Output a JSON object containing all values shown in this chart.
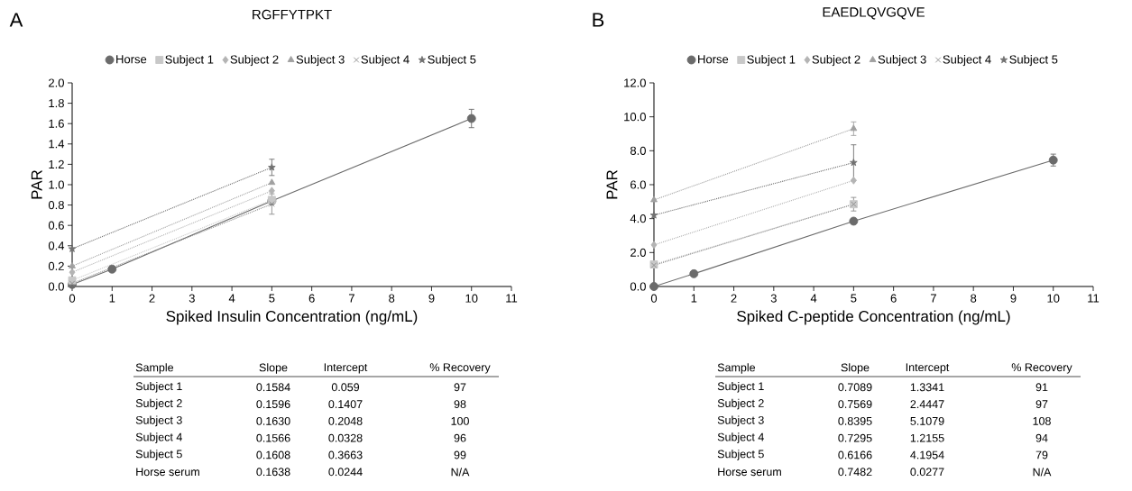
{
  "chart_data": [
    {
      "type": "line",
      "title": "RGFFYTPKT",
      "xlabel": "Spiked Insulin Concentration (ng/mL)",
      "ylabel": "PAR",
      "legend": "top",
      "xlim": [
        0,
        11
      ],
      "xticks": [
        0,
        1,
        2,
        3,
        4,
        5,
        6,
        7,
        8,
        9,
        10,
        11
      ],
      "ylim": [
        0,
        2
      ],
      "yticks": [
        {
          "value": 0,
          "label": "0.0"
        },
        {
          "value": 0.2,
          "label": "0.2"
        },
        {
          "value": 0.4,
          "label": "0.4"
        },
        {
          "value": 0.6,
          "label": "0.6"
        },
        {
          "value": 0.8,
          "label": "0.8"
        },
        {
          "value": 1,
          "label": "1.0"
        },
        {
          "value": 1.2,
          "label": "1.2"
        },
        {
          "value": 1.4,
          "label": "1.4"
        },
        {
          "value": 1.6,
          "label": "1.6"
        },
        {
          "value": 1.8,
          "label": "1.8"
        },
        {
          "value": 2,
          "label": "2.0"
        }
      ],
      "series": [
        {
          "name": "Horse",
          "color": "#6b6b6b",
          "marker": "circle",
          "line_style": "solid",
          "x": [
            0,
            1,
            5,
            10
          ],
          "values": [
            0.02,
            0.17,
            0.84,
            1.65
          ],
          "errors": [
            null,
            null,
            null,
            0.09
          ]
        },
        {
          "name": "Subject 1",
          "color": "#c8c8c8",
          "marker": "square",
          "line_style": "dotted",
          "x": [
            0,
            5
          ],
          "values": [
            0.06,
            0.85
          ],
          "errors": [
            null,
            null
          ]
        },
        {
          "name": "Subject 2",
          "color": "#b4b4b4",
          "marker": "diamond",
          "line_style": "dotted",
          "x": [
            0,
            5
          ],
          "values": [
            0.14,
            0.94
          ],
          "errors": [
            null,
            null
          ]
        },
        {
          "name": "Subject 3",
          "color": "#a0a0a0",
          "marker": "triangle",
          "line_style": "dotted",
          "x": [
            0,
            5
          ],
          "values": [
            0.2,
            1.02
          ],
          "errors": [
            null,
            null
          ]
        },
        {
          "name": "Subject 4",
          "color": "#8c8c8c",
          "marker": "cross",
          "line_style": "dotted",
          "x": [
            0,
            5
          ],
          "values": [
            0.03,
            0.81
          ],
          "errors": [
            null,
            0.1
          ]
        },
        {
          "name": "Subject 5",
          "color": "#707070",
          "marker": "star",
          "line_style": "dotted",
          "x": [
            0,
            5
          ],
          "values": [
            0.37,
            1.17
          ],
          "errors": [
            null,
            0.08
          ]
        }
      ],
      "annotations": [
        "A",
        "Sample",
        "Slope",
        "Intercept",
        "% Recovery",
        "Subject 1",
        "0.1584",
        "0.059",
        "97",
        "Subject 2",
        "0.1596",
        "0.1407",
        "98",
        "Subject 3",
        "0.1630",
        "0.2048",
        "100",
        "Subject 4",
        "0.1566",
        "0.0328",
        "96",
        "Subject 5",
        "0.1608",
        "0.3663",
        "99",
        "Horse serum",
        "0.1638",
        "0.0244",
        "N/A"
      ]
    },
    {
      "type": "line",
      "title": "EAEDLQVGQVE",
      "xlabel": "Spiked C-peptide Concentration (ng/mL)",
      "ylabel": "PAR",
      "legend": "top",
      "xlim": [
        0,
        11
      ],
      "xticks": [
        0,
        1,
        2,
        3,
        4,
        5,
        6,
        7,
        8,
        9,
        10,
        11
      ],
      "ylim": [
        0,
        12
      ],
      "yticks": [
        {
          "value": 0,
          "label": "0.0"
        },
        {
          "value": 2,
          "label": "2.0"
        },
        {
          "value": 4,
          "label": "4.0"
        },
        {
          "value": 6,
          "label": "6.0"
        },
        {
          "value": 8,
          "label": "8.0"
        },
        {
          "value": 10,
          "label": "10.0"
        },
        {
          "value": 12,
          "label": "12.0"
        }
      ],
      "series": [
        {
          "name": "Horse",
          "color": "#6b6b6b",
          "marker": "circle",
          "line_style": "solid",
          "x": [
            0,
            1,
            5,
            10
          ],
          "values": [
            0.0,
            0.75,
            3.85,
            7.45
          ],
          "errors": [
            null,
            null,
            null,
            0.35
          ]
        },
        {
          "name": "Subject 1",
          "color": "#c8c8c8",
          "marker": "square",
          "line_style": "dotted",
          "x": [
            0,
            5
          ],
          "values": [
            1.3,
            4.85
          ],
          "errors": [
            null,
            null
          ]
        },
        {
          "name": "Subject 2",
          "color": "#b4b4b4",
          "marker": "diamond",
          "line_style": "dotted",
          "x": [
            0,
            5
          ],
          "values": [
            2.45,
            6.25
          ],
          "errors": [
            null,
            null
          ]
        },
        {
          "name": "Subject 3",
          "color": "#a0a0a0",
          "marker": "triangle",
          "line_style": "dotted",
          "x": [
            0,
            5
          ],
          "values": [
            5.1,
            9.3
          ],
          "errors": [
            null,
            0.4
          ]
        },
        {
          "name": "Subject 4",
          "color": "#8c8c8c",
          "marker": "cross",
          "line_style": "dotted",
          "x": [
            0,
            5
          ],
          "values": [
            1.25,
            4.85
          ],
          "errors": [
            null,
            0.4
          ]
        },
        {
          "name": "Subject 5",
          "color": "#707070",
          "marker": "star",
          "line_style": "dotted",
          "x": [
            0,
            5
          ],
          "values": [
            4.2,
            7.3
          ],
          "errors": [
            null,
            1.05
          ]
        }
      ],
      "annotations": [
        "B",
        "Sample",
        "Slope",
        "Intercept",
        "% Recovery",
        "Subject 1",
        "0.7089",
        "1.3341",
        "91",
        "Subject 2",
        "0.7569",
        "2.4447",
        "97",
        "Subject 3",
        "0.8395",
        "5.1079",
        "108",
        "Subject 4",
        "0.7295",
        "1.2155",
        "94",
        "Subject 5",
        "0.6166",
        "4.1954",
        "79",
        "Horse serum",
        "0.7482",
        "0.0277",
        "N/A"
      ]
    }
  ]
}
